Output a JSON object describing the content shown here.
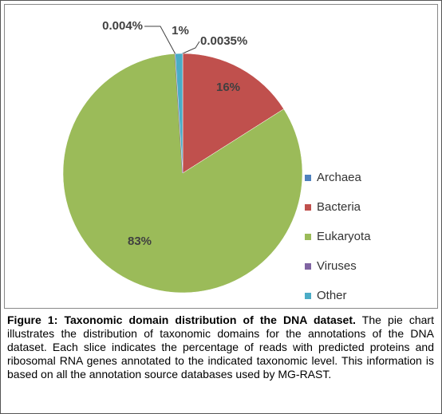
{
  "chart_data": {
    "type": "pie",
    "categories": [
      "Archaea",
      "Bacteria",
      "Eukaryota",
      "Viruses",
      "Other"
    ],
    "values": [
      0.0035,
      16,
      83,
      0.004,
      1
    ],
    "value_labels": [
      "0.0035%",
      "16%",
      "83%",
      "0.004%",
      "1%"
    ],
    "colors": [
      "#4f81bd",
      "#c0504d",
      "#9bbb59",
      "#8064a2",
      "#4bacc6"
    ],
    "legend": "right"
  },
  "caption": {
    "label": "Figure 1: Taxonomic domain distribution of the DNA dataset.",
    "text": "The pie chart illustrates the distribution of taxonomic domains for the annotations of the DNA dataset. Each slice indicates the percentage of reads with predicted proteins and ribosomal RNA genes annotated to the indicated taxonomic level. This information is based on all the annotation source databases used by MG-RAST."
  }
}
